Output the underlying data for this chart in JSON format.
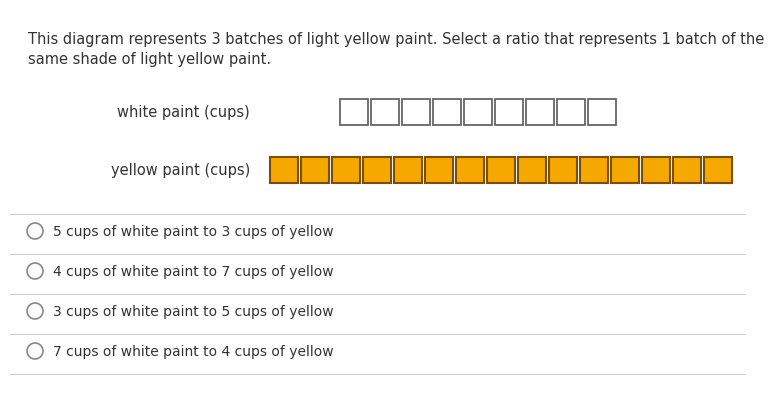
{
  "title_line1": "This diagram represents 3 batches of light yellow paint. Select a ratio that represents 1 batch of the",
  "title_line2": "same shade of light yellow paint.",
  "white_label": "white paint (cups)",
  "yellow_label": "yellow paint (cups)",
  "white_count": 9,
  "yellow_count": 15,
  "white_fill": "#ffffff",
  "white_edge": "#666666",
  "yellow_fill": "#F5A800",
  "yellow_edge": "#7a4f00",
  "options": [
    "5 cups of white paint to 3 cups of yellow",
    "4 cups of white paint to 7 cups of yellow",
    "3 cups of white paint to 5 cups of yellow",
    "7 cups of white paint to 4 cups of yellow"
  ],
  "bg_color": "#ffffff",
  "text_color": "#333333",
  "option_color": "#333333",
  "divider_color": "#cccccc",
  "title_fontsize": 10.5,
  "label_fontsize": 10.5,
  "option_fontsize": 10.0
}
